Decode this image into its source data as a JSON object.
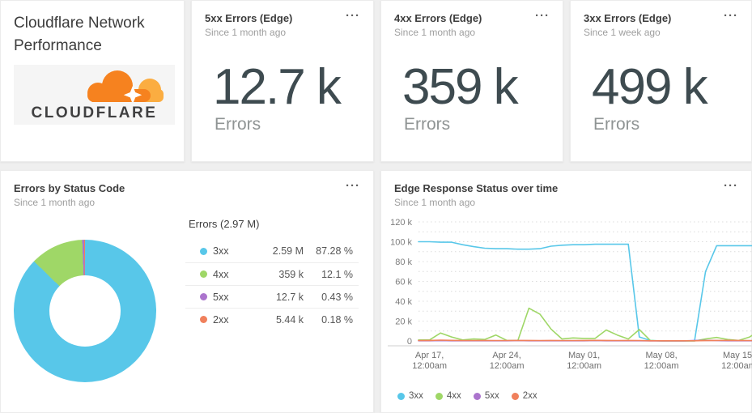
{
  "page": {
    "background": "#efefef",
    "card_background": "#ffffff"
  },
  "icons": {
    "more_options": "···"
  },
  "colors": {
    "accent_3xx": "#58c7e9",
    "accent_4xx": "#9fd767",
    "accent_5xx": "#ab74cd",
    "accent_2xx": "#f0805c",
    "title_text": "#3d3d3d",
    "subtitle_text": "#9e9e9e",
    "metric_text": "#3e4b50",
    "cloudflare_orange": "#f6821f",
    "cloudflare_light_orange": "#fbad41",
    "cloudflare_wordmark": "#404041"
  },
  "header_card": {
    "title": "Cloudflare Network Performance",
    "logo_text": "CLOUDFLARE"
  },
  "kpi_cards": [
    {
      "title": "5xx Errors (Edge)",
      "subtitle": "Since 1 month ago",
      "value": "12.7 k",
      "unit_label": "Errors"
    },
    {
      "title": "4xx Errors (Edge)",
      "subtitle": "Since 1 month ago",
      "value": "359 k",
      "unit_label": "Errors"
    },
    {
      "title": "3xx Errors (Edge)",
      "subtitle": "Since 1 week ago",
      "value": "499 k",
      "unit_label": "Errors"
    }
  ],
  "donut_card": {
    "title": "Errors by Status Code",
    "subtitle": "Since 1 month ago"
  },
  "timeseries_card": {
    "title": "Edge Response Status over time",
    "subtitle": "Since 1 month ago"
  },
  "chart_data": [
    {
      "type": "pie",
      "donut": true,
      "title": "Errors by Status Code",
      "total_label": "Errors (2.97 M)",
      "total_value": 2970000,
      "legend_position": "right",
      "slices": [
        {
          "label": "3xx",
          "value": 2590000,
          "value_label": "2.59 M",
          "percent": 87.28,
          "percent_label": "87.28 %",
          "color": "#58c7e9"
        },
        {
          "label": "4xx",
          "value": 359000,
          "value_label": "359 k",
          "percent": 12.1,
          "percent_label": "12.1 %",
          "color": "#9fd767"
        },
        {
          "label": "5xx",
          "value": 12700,
          "value_label": "12.7 k",
          "percent": 0.43,
          "percent_label": "0.43 %",
          "color": "#ab74cd"
        },
        {
          "label": "2xx",
          "value": 5440,
          "value_label": "5.44 k",
          "percent": 0.18,
          "percent_label": "0.18 %",
          "color": "#f0805c"
        }
      ]
    },
    {
      "type": "line",
      "title": "Edge Response Status over time",
      "xlabel": "",
      "ylabel": "",
      "ylim_k": [
        0,
        120
      ],
      "grid": "dotted-horizontal",
      "legend_position": "bottom",
      "y_ticks": [
        {
          "k": 0,
          "label": "0"
        },
        {
          "k": 20,
          "label": "20 k"
        },
        {
          "k": 40,
          "label": "40 k"
        },
        {
          "k": 60,
          "label": "60 k"
        },
        {
          "k": 80,
          "label": "80 k"
        },
        {
          "k": 100,
          "label": "100 k"
        },
        {
          "k": 120,
          "label": "120 k"
        }
      ],
      "x_ticks": [
        {
          "line1": "Apr 17,",
          "line2": "12:00am"
        },
        {
          "line1": "Apr 24,",
          "line2": "12:00am"
        },
        {
          "line1": "May 01,",
          "line2": "12:00am"
        },
        {
          "line1": "May 08,",
          "line2": "12:00am"
        },
        {
          "line1": "May 15,",
          "line2": "12:00am"
        }
      ],
      "tick_point_indices": [
        1,
        8,
        15,
        22,
        29
      ],
      "series": [
        {
          "name": "3xx",
          "color": "#58c7e9",
          "values_k": [
            100,
            100,
            99.5,
            99.5,
            97,
            95,
            93.5,
            93,
            93,
            92.5,
            92.5,
            93,
            95.5,
            96.5,
            97,
            97,
            97.5,
            97.5,
            97.5,
            97.5,
            4,
            0.5,
            0,
            0,
            0,
            0,
            70,
            96,
            96,
            96,
            96,
            96
          ]
        },
        {
          "name": "4xx",
          "color": "#9fd767",
          "values_k": [
            1,
            1,
            8,
            4,
            1,
            2,
            1.5,
            6,
            0.5,
            0.5,
            33,
            27,
            12,
            2,
            3,
            2.5,
            2.5,
            11,
            6,
            2,
            11.5,
            0.5,
            0,
            0,
            0,
            0,
            2,
            3.5,
            1.5,
            0.5,
            4,
            11.5
          ]
        },
        {
          "name": "5xx",
          "color": "#ab74cd",
          "values_k": [
            0.2,
            0.2,
            0.3,
            0.2,
            0.2,
            0.2,
            0.2,
            0.2,
            0.2,
            0.3,
            0.2,
            0.2,
            0.2,
            0.2,
            0.2,
            0.2,
            0.3,
            0.2,
            0.2,
            0.2,
            0.2,
            0.1,
            0.1,
            0.1,
            0.1,
            0.5,
            0.6,
            0.3,
            0.2,
            0.2,
            0.2,
            0.2
          ]
        },
        {
          "name": "2xx",
          "color": "#f0805c",
          "values_k": [
            0.4,
            0.5,
            0.8,
            0.6,
            0.4,
            0.4,
            0.5,
            0.4,
            0.4,
            0.5,
            0.5,
            0.4,
            0.5,
            0.4,
            0.4,
            0.5,
            0.6,
            0.5,
            0.4,
            0.5,
            0.4,
            0.2,
            0.2,
            0.2,
            0.2,
            0.2,
            0.3,
            0.5,
            0.6,
            0.5,
            0.4,
            0.4
          ]
        }
      ]
    }
  ]
}
